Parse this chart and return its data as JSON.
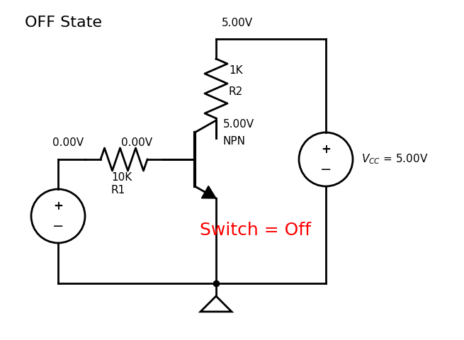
{
  "title": "OFF State",
  "switch_label": "Switch = Off",
  "switch_color": "red",
  "v_top": "5.00V",
  "v_base_left": "0.00V",
  "v_base_right": "0.00V",
  "v_collector": "5.00V",
  "npn_label": "NPN",
  "r1_label1": "10K",
  "r1_label2": "R1",
  "r2_label1": "1K",
  "r2_label2": "R2",
  "line_color": "black",
  "line_width": 2.0,
  "bg_color": "white",
  "title_fontsize": 16,
  "label_fontsize": 11,
  "switch_fontsize": 18,
  "vcc_text": "$V_{CC}$  = 5.00V"
}
